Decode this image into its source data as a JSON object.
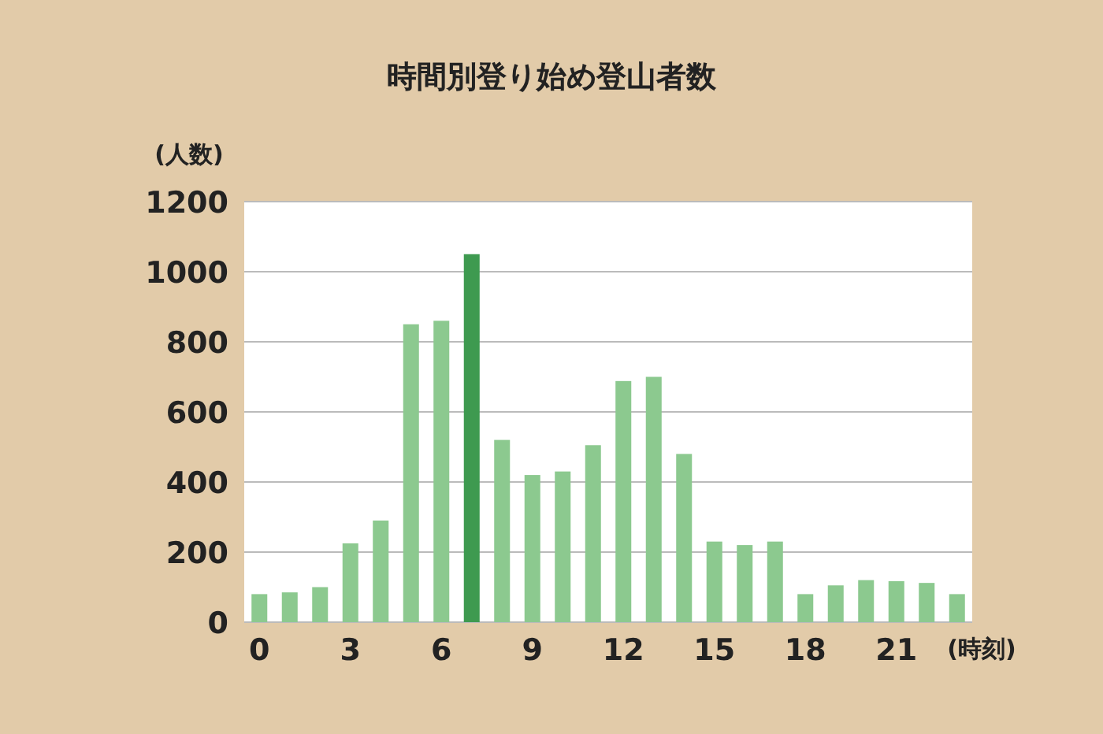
{
  "chart_data": {
    "type": "bar",
    "title": "時間別登り始め登山者数",
    "xlabel": "(時刻)",
    "ylabel": "(人数)",
    "categories": [
      "0",
      null,
      null,
      "3",
      null,
      null,
      "6",
      null,
      null,
      "9",
      null,
      null,
      "12",
      null,
      null,
      "15",
      null,
      null,
      "18",
      null,
      null,
      "21",
      null,
      null
    ],
    "values": [
      80,
      85,
      100,
      225,
      290,
      850,
      860,
      1050,
      520,
      420,
      430,
      505,
      688,
      700,
      480,
      230,
      220,
      230,
      80,
      105,
      120,
      117,
      112,
      80
    ],
    "colors": [
      "#8cc98f",
      "#8cc98f",
      "#8cc98f",
      "#8cc98f",
      "#8cc98f",
      "#8cc98f",
      "#8cc98f",
      "#3e9a50",
      "#8cc98f",
      "#8cc98f",
      "#8cc98f",
      "#8cc98f",
      "#8cc98f",
      "#8cc98f",
      "#8cc98f",
      "#8cc98f",
      "#8cc98f",
      "#8cc98f",
      "#8cc98f",
      "#8cc98f",
      "#8cc98f",
      "#8cc98f",
      "#8cc98f",
      "#8cc98f"
    ],
    "ylim": [
      0,
      1200
    ],
    "yticks": [
      0,
      200,
      400,
      600,
      800,
      1000,
      1200
    ],
    "grid": "y"
  }
}
